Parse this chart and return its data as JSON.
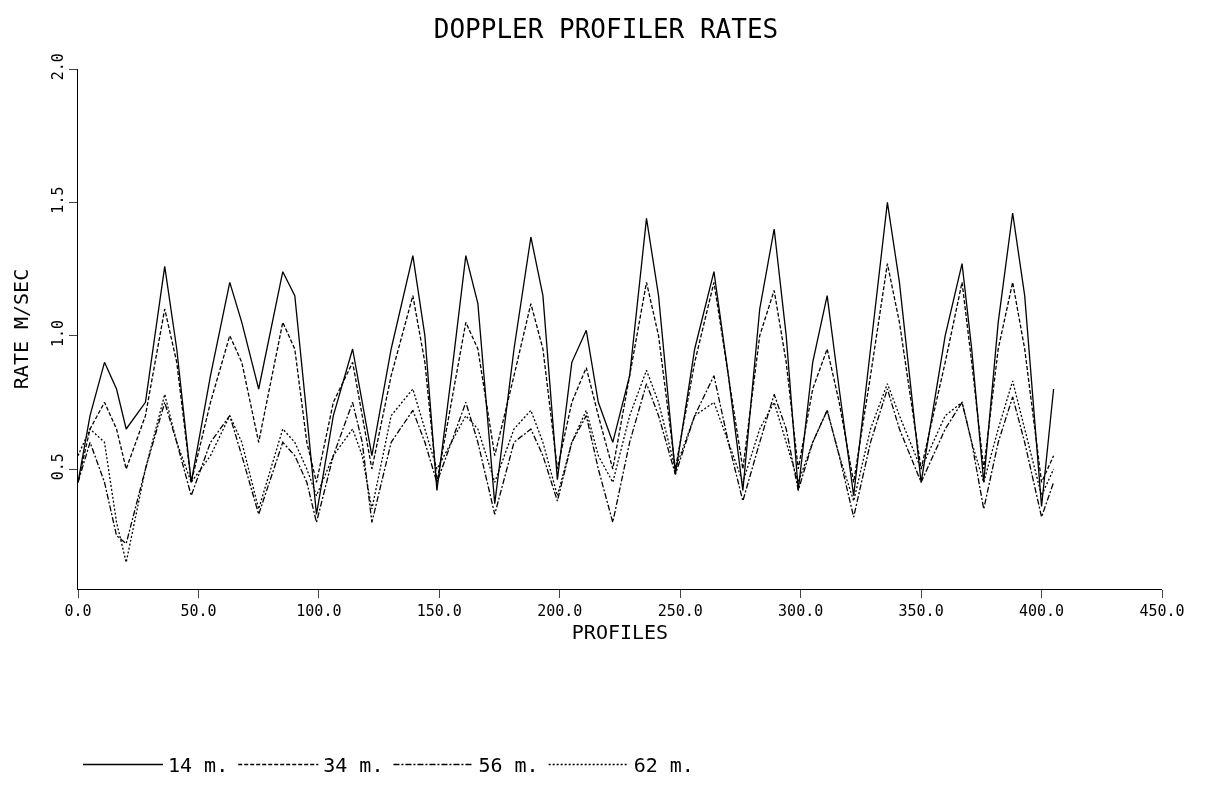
{
  "chart_data": {
    "type": "line",
    "title": "DOPPLER PROFILER RATES",
    "xlabel": "PROFILES",
    "ylabel": "RATE M/SEC",
    "x": [
      0,
      5,
      11,
      16,
      20,
      28,
      36,
      41,
      47,
      55,
      63,
      68,
      75,
      85,
      90,
      95,
      99,
      106,
      114,
      118,
      122,
      130,
      139,
      144,
      149,
      155,
      161,
      166,
      173,
      181,
      188,
      193,
      199,
      205,
      211,
      216,
      222,
      229,
      236,
      241,
      248,
      256,
      264,
      270,
      276,
      283,
      289,
      294,
      299,
      305,
      311,
      316,
      322,
      329,
      336,
      341,
      350,
      360,
      367,
      371,
      376,
      382,
      388,
      393,
      400,
      405
    ],
    "series": [
      {
        "name": "14 m.",
        "color": "#000000",
        "line_style": "solid",
        "values": [
          0.45,
          0.7,
          0.9,
          0.8,
          0.65,
          0.75,
          1.26,
          0.95,
          0.45,
          0.85,
          1.2,
          1.05,
          0.8,
          1.24,
          1.15,
          0.7,
          0.33,
          0.7,
          0.95,
          0.75,
          0.55,
          0.95,
          1.3,
          1.0,
          0.42,
          0.85,
          1.3,
          1.12,
          0.37,
          0.95,
          1.37,
          1.15,
          0.46,
          0.9,
          1.02,
          0.75,
          0.6,
          0.85,
          1.44,
          1.15,
          0.48,
          0.95,
          1.24,
          0.85,
          0.42,
          1.1,
          1.4,
          1.0,
          0.42,
          0.9,
          1.15,
          0.8,
          0.4,
          0.95,
          1.5,
          1.2,
          0.45,
          1.0,
          1.27,
          0.95,
          0.45,
          1.05,
          1.46,
          1.15,
          0.36,
          0.8
        ]
      },
      {
        "name": "34 m.",
        "color": "#000000",
        "line_style": "dashed",
        "values": [
          0.45,
          0.65,
          0.75,
          0.65,
          0.5,
          0.7,
          1.1,
          0.9,
          0.45,
          0.75,
          1.0,
          0.9,
          0.6,
          1.05,
          0.95,
          0.6,
          0.45,
          0.75,
          0.9,
          0.7,
          0.5,
          0.85,
          1.15,
          0.9,
          0.45,
          0.75,
          1.05,
          0.95,
          0.55,
          0.85,
          1.12,
          0.95,
          0.5,
          0.75,
          0.88,
          0.7,
          0.5,
          0.85,
          1.2,
          1.0,
          0.5,
          0.9,
          1.2,
          0.85,
          0.5,
          1.0,
          1.17,
          0.9,
          0.5,
          0.8,
          0.95,
          0.75,
          0.45,
          0.85,
          1.27,
          1.05,
          0.5,
          0.9,
          1.2,
          0.9,
          0.5,
          0.95,
          1.2,
          0.95,
          0.45,
          0.55
        ]
      },
      {
        "name": "56 m.",
        "color": "#000000",
        "line_style": "dashdot",
        "values": [
          0.45,
          0.6,
          0.45,
          0.25,
          0.22,
          0.5,
          0.75,
          0.6,
          0.4,
          0.6,
          0.7,
          0.55,
          0.33,
          0.6,
          0.55,
          0.45,
          0.3,
          0.55,
          0.75,
          0.6,
          0.3,
          0.6,
          0.72,
          0.6,
          0.45,
          0.6,
          0.75,
          0.6,
          0.33,
          0.6,
          0.65,
          0.55,
          0.38,
          0.6,
          0.7,
          0.5,
          0.3,
          0.6,
          0.82,
          0.7,
          0.48,
          0.7,
          0.85,
          0.6,
          0.38,
          0.6,
          0.78,
          0.65,
          0.42,
          0.6,
          0.72,
          0.55,
          0.32,
          0.6,
          0.8,
          0.65,
          0.45,
          0.65,
          0.75,
          0.6,
          0.35,
          0.6,
          0.77,
          0.6,
          0.32,
          0.45
        ]
      },
      {
        "name": "62 m.",
        "color": "#000000",
        "line_style": "dotted",
        "values": [
          0.55,
          0.65,
          0.6,
          0.3,
          0.15,
          0.5,
          0.78,
          0.6,
          0.45,
          0.55,
          0.7,
          0.6,
          0.35,
          0.65,
          0.6,
          0.5,
          0.4,
          0.55,
          0.65,
          0.55,
          0.35,
          0.7,
          0.8,
          0.65,
          0.5,
          0.6,
          0.7,
          0.65,
          0.45,
          0.65,
          0.72,
          0.6,
          0.4,
          0.6,
          0.72,
          0.55,
          0.45,
          0.7,
          0.87,
          0.75,
          0.5,
          0.7,
          0.75,
          0.6,
          0.45,
          0.65,
          0.75,
          0.6,
          0.45,
          0.6,
          0.72,
          0.55,
          0.38,
          0.65,
          0.82,
          0.7,
          0.5,
          0.7,
          0.75,
          0.6,
          0.45,
          0.65,
          0.83,
          0.65,
          0.4,
          0.5
        ]
      }
    ],
    "xlim": [
      0,
      450
    ],
    "xticks": [
      {
        "value": 0,
        "label": "0.0"
      },
      {
        "value": 50,
        "label": "50.0"
      },
      {
        "value": 100,
        "label": "100.0"
      },
      {
        "value": 150,
        "label": "150.0"
      },
      {
        "value": 200,
        "label": "200.0"
      },
      {
        "value": 250,
        "label": "250.0"
      },
      {
        "value": 300,
        "label": "300.0"
      },
      {
        "value": 350,
        "label": "350.0"
      },
      {
        "value": 400,
        "label": "400.0"
      },
      {
        "value": 450,
        "label": "450.0"
      }
    ],
    "ylim": [
      0.05,
      2.0
    ],
    "yticks": [
      0.5,
      {
        "value": 1.0,
        "label": "1.0"
      },
      1.5,
      {
        "value": 2.0,
        "label": "2.0"
      }
    ],
    "legend": "bottom"
  }
}
